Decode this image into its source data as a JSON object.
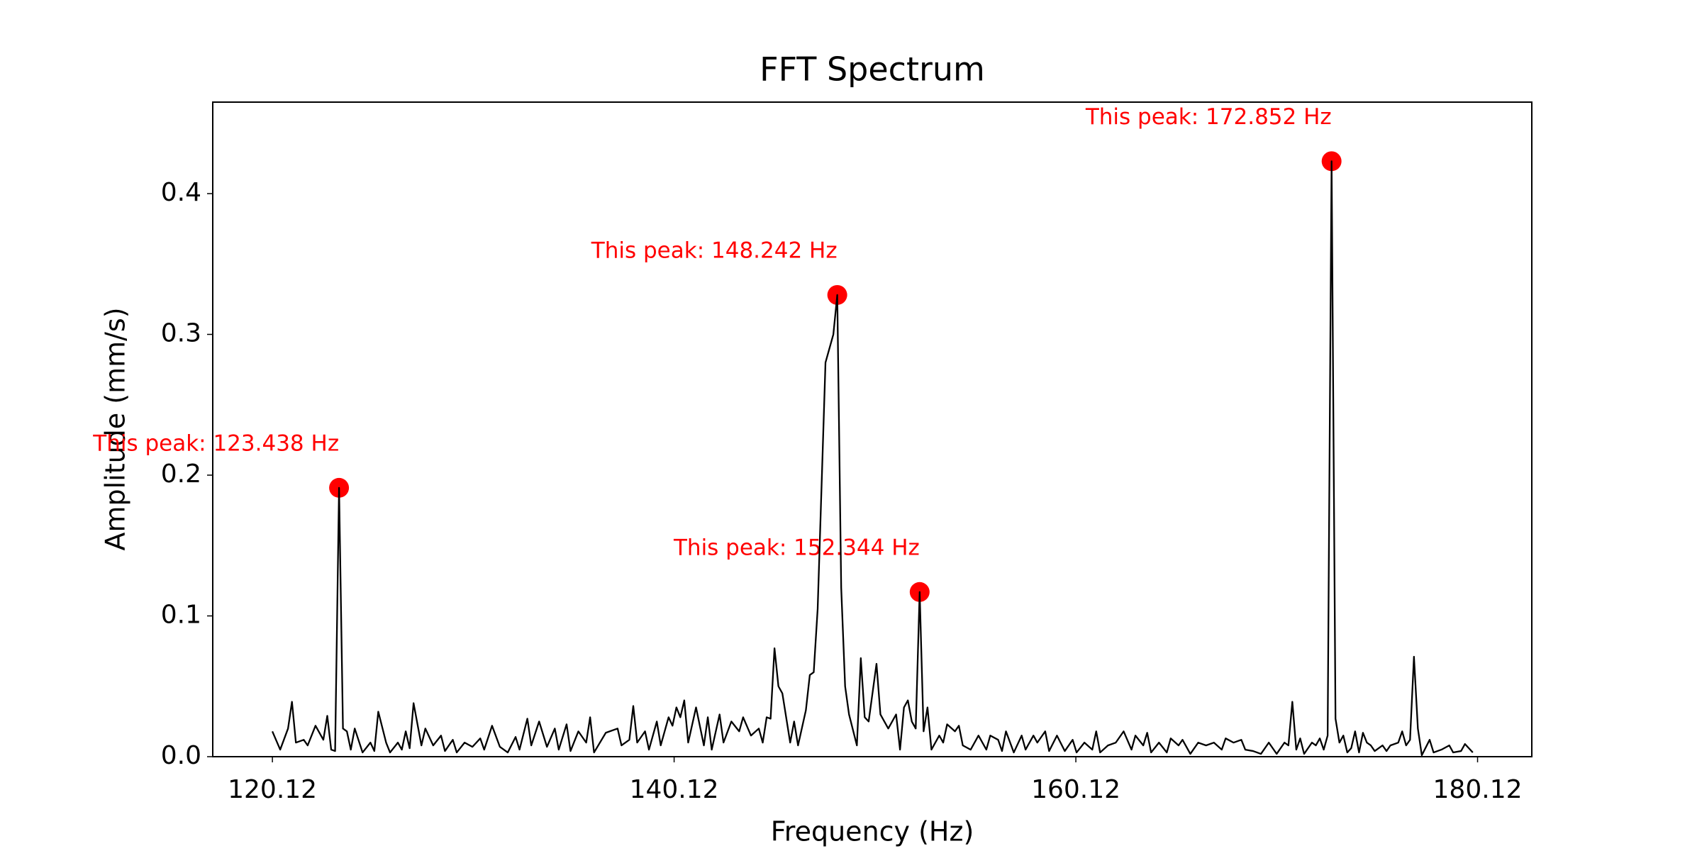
{
  "chart_data": {
    "type": "line",
    "title": "FFT Spectrum",
    "x_label": "Frequency (Hz)",
    "y_label": "Amplitude (mm/s)",
    "x": [
      120.117,
      120.508,
      120.898,
      121.094,
      121.289,
      121.68,
      121.875,
      122.266,
      122.656,
      122.852,
      123.047,
      123.242,
      123.438,
      123.633,
      123.828,
      124.023,
      124.219,
      124.609,
      125.0,
      125.195,
      125.391,
      125.781,
      125.977,
      126.367,
      126.563,
      126.758,
      126.953,
      127.148,
      127.539,
      127.734,
      128.125,
      128.516,
      128.711,
      129.102,
      129.297,
      129.688,
      130.078,
      130.469,
      130.664,
      131.055,
      131.445,
      131.836,
      132.227,
      132.422,
      132.813,
      133.008,
      133.398,
      133.789,
      134.18,
      134.375,
      134.766,
      134.961,
      135.352,
      135.742,
      135.938,
      136.133,
      136.719,
      137.305,
      137.5,
      137.891,
      138.086,
      138.281,
      138.672,
      138.867,
      139.258,
      139.453,
      139.844,
      140.039,
      140.234,
      140.43,
      140.625,
      140.82,
      141.211,
      141.602,
      141.797,
      141.992,
      142.383,
      142.578,
      142.969,
      143.359,
      143.555,
      143.945,
      144.336,
      144.531,
      144.727,
      144.922,
      145.117,
      145.313,
      145.508,
      145.898,
      146.094,
      146.289,
      146.68,
      146.875,
      147.07,
      147.266,
      147.656,
      148.047,
      148.242,
      148.438,
      148.633,
      148.828,
      149.219,
      149.414,
      149.609,
      149.805,
      150.195,
      150.391,
      150.781,
      151.172,
      151.367,
      151.563,
      151.758,
      151.953,
      152.148,
      152.344,
      152.539,
      152.734,
      152.93,
      153.32,
      153.516,
      153.711,
      154.102,
      154.297,
      154.492,
      154.883,
      155.273,
      155.664,
      155.859,
      156.25,
      156.445,
      156.641,
      157.031,
      157.422,
      157.617,
      158.008,
      158.203,
      158.594,
      158.789,
      159.18,
      159.57,
      159.961,
      160.156,
      160.547,
      160.938,
      161.133,
      161.328,
      161.719,
      162.109,
      162.5,
      162.891,
      163.086,
      163.477,
      163.672,
      163.867,
      164.258,
      164.648,
      164.844,
      165.234,
      165.43,
      165.82,
      166.211,
      166.602,
      166.992,
      167.383,
      167.578,
      167.969,
      168.359,
      168.555,
      168.945,
      169.336,
      169.727,
      170.117,
      170.508,
      170.703,
      170.898,
      171.094,
      171.289,
      171.484,
      171.875,
      172.07,
      172.266,
      172.461,
      172.656,
      172.852,
      173.047,
      173.242,
      173.438,
      173.633,
      173.828,
      174.023,
      174.219,
      174.414,
      174.609,
      174.805,
      175.0,
      175.391,
      175.586,
      175.781,
      176.172,
      176.367,
      176.563,
      176.758,
      176.953,
      177.148,
      177.344,
      177.734,
      177.93,
      178.32,
      178.711,
      178.906,
      179.297,
      179.492,
      179.883
    ],
    "series": [
      {
        "color": "#000000",
        "values": [
          0.018,
          0.005,
          0.02,
          0.039,
          0.01,
          0.012,
          0.008,
          0.022,
          0.012,
          0.029,
          0.005,
          0.004,
          0.191,
          0.02,
          0.018,
          0.005,
          0.02,
          0.003,
          0.01,
          0.004,
          0.032,
          0.01,
          0.003,
          0.01,
          0.005,
          0.018,
          0.006,
          0.038,
          0.008,
          0.02,
          0.008,
          0.015,
          0.004,
          0.012,
          0.003,
          0.01,
          0.007,
          0.013,
          0.005,
          0.022,
          0.007,
          0.003,
          0.014,
          0.005,
          0.027,
          0.008,
          0.025,
          0.007,
          0.02,
          0.005,
          0.023,
          0.004,
          0.018,
          0.01,
          0.028,
          0.003,
          0.017,
          0.02,
          0.008,
          0.012,
          0.036,
          0.01,
          0.018,
          0.005,
          0.025,
          0.008,
          0.028,
          0.022,
          0.035,
          0.028,
          0.04,
          0.01,
          0.035,
          0.008,
          0.028,
          0.005,
          0.03,
          0.01,
          0.025,
          0.018,
          0.028,
          0.015,
          0.02,
          0.01,
          0.028,
          0.027,
          0.077,
          0.05,
          0.045,
          0.01,
          0.025,
          0.008,
          0.033,
          0.058,
          0.06,
          0.105,
          0.28,
          0.3,
          0.328,
          0.12,
          0.05,
          0.03,
          0.008,
          0.07,
          0.028,
          0.025,
          0.066,
          0.03,
          0.02,
          0.03,
          0.005,
          0.035,
          0.04,
          0.025,
          0.02,
          0.117,
          0.018,
          0.035,
          0.005,
          0.015,
          0.01,
          0.023,
          0.018,
          0.022,
          0.008,
          0.005,
          0.015,
          0.005,
          0.015,
          0.012,
          0.004,
          0.018,
          0.003,
          0.015,
          0.005,
          0.015,
          0.01,
          0.018,
          0.004,
          0.015,
          0.004,
          0.012,
          0.003,
          0.01,
          0.005,
          0.018,
          0.003,
          0.008,
          0.01,
          0.018,
          0.005,
          0.015,
          0.008,
          0.017,
          0.003,
          0.01,
          0.003,
          0.013,
          0.008,
          0.012,
          0.002,
          0.01,
          0.008,
          0.01,
          0.005,
          0.013,
          0.01,
          0.012,
          0.005,
          0.004,
          0.002,
          0.01,
          0.002,
          0.01,
          0.008,
          0.039,
          0.005,
          0.013,
          0.002,
          0.01,
          0.008,
          0.013,
          0.005,
          0.015,
          0.423,
          0.027,
          0.01,
          0.015,
          0.003,
          0.006,
          0.018,
          0.003,
          0.017,
          0.01,
          0.008,
          0.004,
          0.008,
          0.004,
          0.008,
          0.01,
          0.018,
          0.008,
          0.012,
          0.071,
          0.02,
          0.001,
          0.012,
          0.003,
          0.005,
          0.008,
          0.003,
          0.004,
          0.009,
          0.003
        ]
      }
    ],
    "peaks": {
      "color": "#ff0000",
      "x": [
        123.438,
        148.242,
        152.344,
        172.852
      ],
      "values": [
        0.191,
        0.328,
        0.117,
        0.423
      ],
      "labels": [
        "This peak: 123.438 Hz",
        "This peak: 148.242 Hz",
        "This peak: 152.344 Hz",
        "This peak: 172.852 Hz"
      ]
    },
    "xlim": [
      117.15,
      182.82
    ],
    "xticks": [
      120.12,
      140.12,
      160.12,
      180.12
    ],
    "ylim": [
      0,
      0.465
    ],
    "yticks": [
      {
        "value": 0,
        "label": "0.0"
      },
      0.1,
      0.2,
      0.3,
      0.4
    ]
  }
}
